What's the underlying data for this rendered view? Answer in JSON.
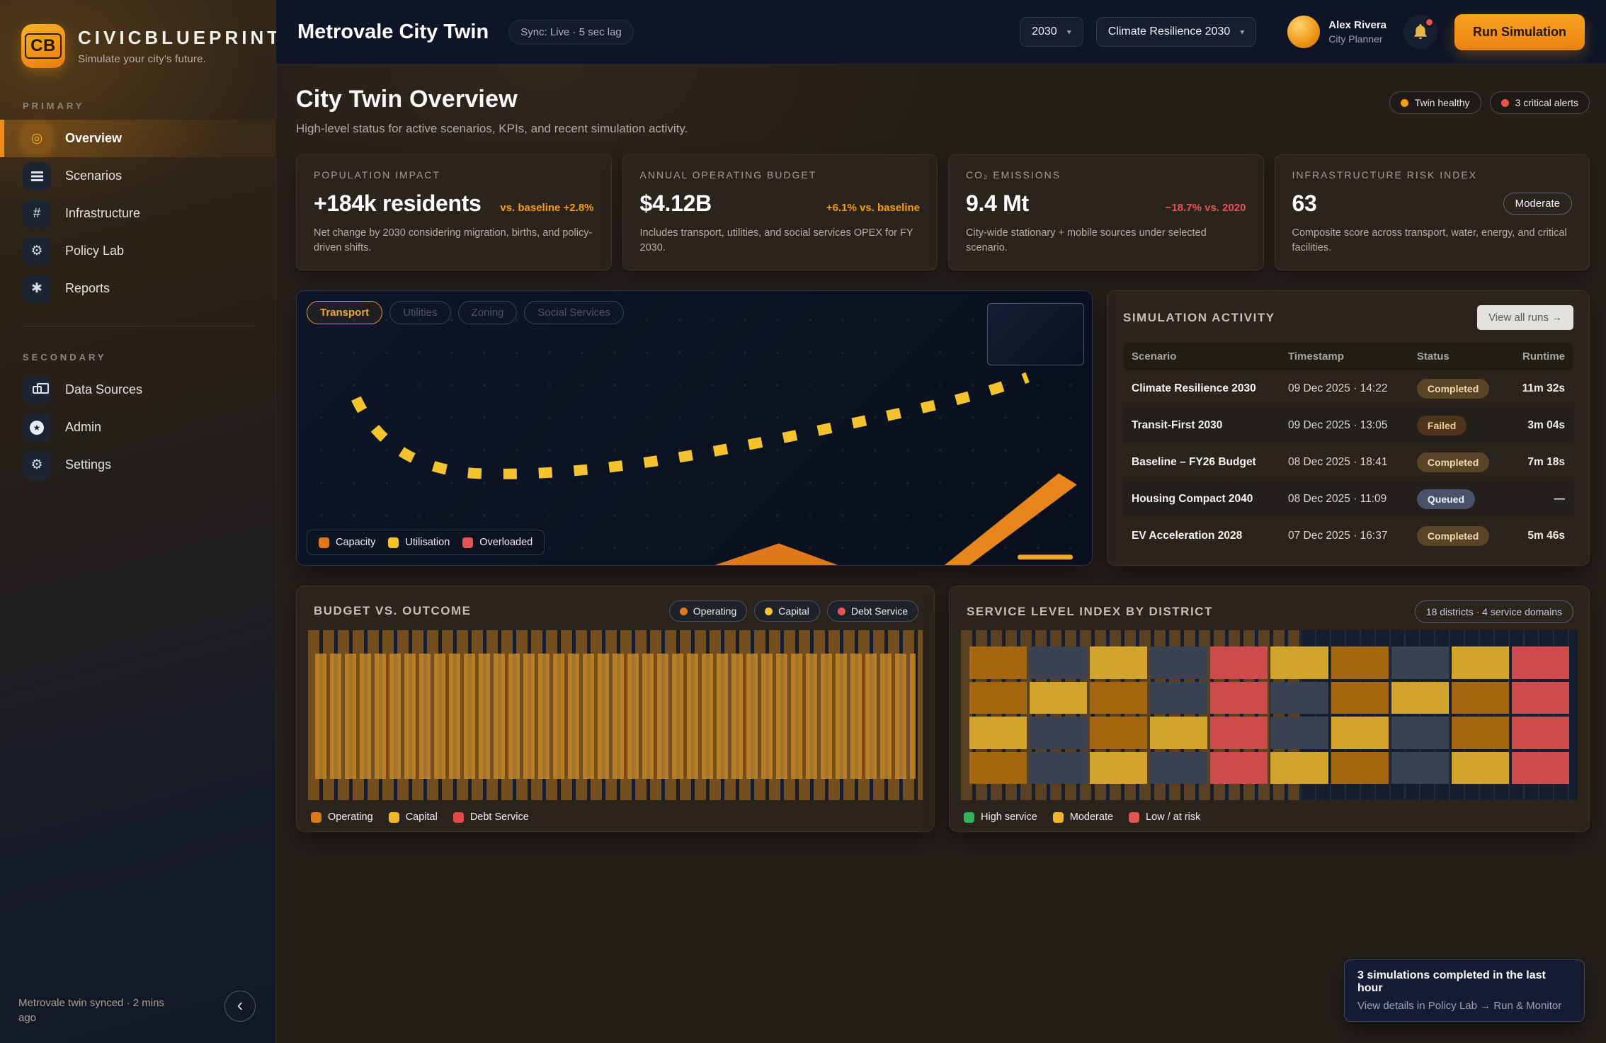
{
  "brand": {
    "initials": "CB",
    "name": "CIVICBLUEPRINT",
    "tagline": "Simulate your city's future."
  },
  "sidebar": {
    "primary_label": "PRIMARY",
    "secondary_label": "SECONDARY",
    "primary": [
      {
        "label": "Overview",
        "icon": "overview",
        "active": true
      },
      {
        "label": "Scenarios",
        "icon": "scenarios",
        "active": false
      },
      {
        "label": "Infrastructure",
        "icon": "infrastructure",
        "active": false
      },
      {
        "label": "Policy Lab",
        "icon": "policy",
        "active": false
      },
      {
        "label": "Reports",
        "icon": "reports",
        "active": false
      }
    ],
    "secondary": [
      {
        "label": "Data Sources",
        "icon": "data",
        "active": false
      },
      {
        "label": "Admin",
        "icon": "admin",
        "active": false
      },
      {
        "label": "Settings",
        "icon": "settings",
        "active": false
      }
    ],
    "footer_text": "Metrovale twin synced · 2 mins ago"
  },
  "header": {
    "title": "Metrovale City Twin",
    "sync_status": "Sync: Live · 5 sec lag",
    "year_select": "2030",
    "scenario_select": "Climate Resilience 2030",
    "user": {
      "name": "Alex Rivera",
      "role": "City Planner"
    },
    "run_button": "Run Simulation"
  },
  "page": {
    "title": "City Twin Overview",
    "subtitle": "High-level status for active scenarios, KPIs, and recent simulation activity.",
    "badges": [
      {
        "label": "Twin healthy",
        "color": "#f59e0b"
      },
      {
        "label": "3 critical alerts",
        "color": "#ef5350"
      }
    ]
  },
  "kpis": [
    {
      "label": "POPULATION IMPACT",
      "value": "+184k residents",
      "delta": "vs. baseline +2.8%",
      "delta_color": "#f59e0b",
      "desc": "Net change by 2030 considering migration, births, and policy-driven shifts."
    },
    {
      "label": "ANNUAL OPERATING BUDGET",
      "value": "$4.12B",
      "delta": "+6.1% vs. baseline",
      "delta_color": "#f59e0b",
      "desc": "Includes transport, utilities, and social services OPEX for FY 2030."
    },
    {
      "label": "CO₂ EMISSIONS",
      "value": "9.4 Mt",
      "delta": "−18.7% vs. 2020",
      "delta_color": "#e25555",
      "desc": "City-wide stationary + mobile sources under selected scenario."
    },
    {
      "label": "INFRASTRUCTURE RISK INDEX",
      "value": "63",
      "badge": "Moderate",
      "desc": "Composite score across transport, water, energy, and critical facilities."
    }
  ],
  "network": {
    "tabs": [
      {
        "label": "Transport",
        "active": true
      },
      {
        "label": "Utilities",
        "active": false
      },
      {
        "label": "Zoning",
        "active": false
      },
      {
        "label": "Social Services",
        "active": false
      }
    ],
    "legend": [
      {
        "label": "Capacity",
        "color": "#e0791c"
      },
      {
        "label": "Utilisation",
        "color": "#f5c32d"
      },
      {
        "label": "Overloaded",
        "color": "#e25555"
      }
    ]
  },
  "activity": {
    "title": "SIMULATION ACTIVITY",
    "action": "View all runs →",
    "columns": [
      "Scenario",
      "Timestamp",
      "Status",
      "Runtime"
    ],
    "rows": [
      {
        "scenario": "Climate Resilience 2030",
        "timestamp": "09 Dec 2025 · 14:22",
        "status": "Completed",
        "status_kind": "completed",
        "runtime": "11m 32s"
      },
      {
        "scenario": "Transit-First 2030",
        "timestamp": "09 Dec 2025 · 13:05",
        "status": "Failed",
        "status_kind": "failed",
        "runtime": "3m 04s"
      },
      {
        "scenario": "Baseline – FY26 Budget",
        "timestamp": "08 Dec 2025 · 18:41",
        "status": "Completed",
        "status_kind": "completed",
        "runtime": "7m 18s"
      },
      {
        "scenario": "Housing Compact 2040",
        "timestamp": "08 Dec 2025 · 11:09",
        "status": "Queued",
        "status_kind": "queued",
        "runtime": "—"
      },
      {
        "scenario": "EV Acceleration 2028",
        "timestamp": "07 Dec 2025 · 16:37",
        "status": "Completed",
        "status_kind": "completed",
        "runtime": "5m 46s"
      }
    ]
  },
  "budget": {
    "title": "BUDGET VS. OUTCOME",
    "header_pills": [
      {
        "label": "Operating",
        "color": "#e0791c"
      },
      {
        "label": "Capital",
        "color": "#f5c32d"
      },
      {
        "label": "Debt Service",
        "color": "#e25555"
      }
    ],
    "legend": [
      {
        "label": "Operating",
        "color": "#d97a16"
      },
      {
        "label": "Capital",
        "color": "#f5b728"
      },
      {
        "label": "Debt Service",
        "color": "#e54848"
      }
    ]
  },
  "service": {
    "title": "SERVICE LEVEL INDEX BY DISTRICT",
    "badge": "18 districts · 4 service domains",
    "legend": [
      {
        "label": "High service",
        "color": "#2db55d"
      },
      {
        "label": "Moderate",
        "color": "#f0b429"
      },
      {
        "label": "Low / at risk",
        "color": "#e25555"
      }
    ],
    "cell_colors": {
      "amber": "#a4660f",
      "gold": "#d2a42b",
      "slate": "#3a4252",
      "red": "#cf4b4b"
    },
    "matrix": [
      [
        "amber",
        "slate",
        "gold",
        "slate",
        "red",
        "gold",
        "amber",
        "slate",
        "gold",
        "red"
      ],
      [
        "amber",
        "gold",
        "amber",
        "slate",
        "red",
        "slate",
        "amber",
        "gold",
        "amber",
        "red"
      ],
      [
        "gold",
        "slate",
        "amber",
        "gold",
        "red",
        "slate",
        "gold",
        "slate",
        "amber",
        "red"
      ],
      [
        "amber",
        "slate",
        "gold",
        "slate",
        "red",
        "gold",
        "amber",
        "slate",
        "gold",
        "red"
      ]
    ]
  },
  "toast": {
    "title": "3 simulations completed in the last hour",
    "subtitle": "View details in Policy Lab → Run & Monitor"
  },
  "chart_data": [
    {
      "type": "line",
      "title": "Transport network utilisation (dashed trend)",
      "series": [
        {
          "name": "Utilisation",
          "style": "dashed",
          "color": "#f5c32d",
          "x_relative": [
            0.06,
            0.12,
            0.18,
            0.24,
            0.32,
            0.4,
            0.48,
            0.56,
            0.64,
            0.72,
            0.8,
            0.88,
            0.92
          ],
          "y_relative_load": [
            60,
            45,
            34,
            33,
            36,
            40,
            45,
            50,
            55,
            61,
            68,
            75,
            79
          ]
        }
      ],
      "xlabel": "",
      "ylabel": "",
      "axis_labels_visible": false,
      "legend": [
        "Capacity",
        "Utilisation",
        "Overloaded"
      ],
      "legend_position": "bottom-left"
    },
    {
      "type": "bar",
      "title": "Budget vs. Outcome",
      "note": "Dense vertical bar field; individual values not labeled on screen",
      "series": [
        {
          "name": "Operating+Capital band",
          "appearance": "striped amber block spanning full width"
        }
      ],
      "values_visible": false,
      "legend": [
        "Operating",
        "Capital",
        "Debt Service"
      ],
      "legend_position": "bottom-left"
    },
    {
      "type": "heatmap",
      "title": "Service Level Index by District",
      "rows": 4,
      "cols": 10,
      "categories_note": "18 districts · 4 service domains",
      "matrix_tokens": [
        [
          "amber",
          "slate",
          "gold",
          "slate",
          "red",
          "gold",
          "amber",
          "slate",
          "gold",
          "red"
        ],
        [
          "amber",
          "gold",
          "amber",
          "slate",
          "red",
          "slate",
          "amber",
          "gold",
          "amber",
          "red"
        ],
        [
          "gold",
          "slate",
          "amber",
          "gold",
          "red",
          "slate",
          "gold",
          "slate",
          "amber",
          "red"
        ],
        [
          "amber",
          "slate",
          "gold",
          "slate",
          "red",
          "gold",
          "amber",
          "slate",
          "gold",
          "red"
        ]
      ],
      "legend": [
        "High service",
        "Moderate",
        "Low / at risk"
      ],
      "legend_position": "bottom-left"
    }
  ]
}
